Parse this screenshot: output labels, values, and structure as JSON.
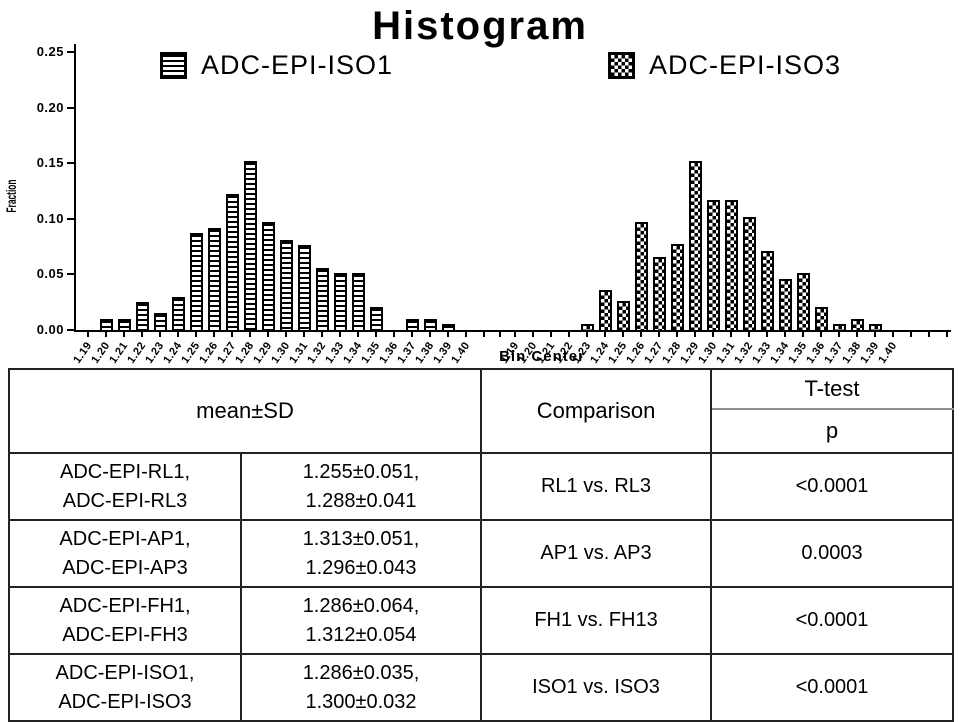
{
  "chart_data": {
    "type": "bar",
    "title": "Histogram",
    "xlabel": "Bin Center",
    "ylabel": "Fraction",
    "ylim": [
      0,
      0.25
    ],
    "yticks": [
      "0.00",
      "0.05",
      "0.10",
      "0.15",
      "0.20",
      "0.25"
    ],
    "grid": false,
    "legend_position": "top",
    "categories": [
      "1.19",
      "1.20",
      "1.21",
      "1.22",
      "1.23",
      "1.24",
      "1.25",
      "1.26",
      "1.27",
      "1.28",
      "1.29",
      "1.30",
      "1.31",
      "1.32",
      "1.33",
      "1.34",
      "1.35",
      "1.36",
      "1.37",
      "1.38",
      "1.39",
      "1.40"
    ],
    "series": [
      {
        "name": "ADC-EPI-ISO1",
        "pattern": "horizontal-lines",
        "values": [
          0,
          0.01,
          0.01,
          0.025,
          0.015,
          0.03,
          0.087,
          0.092,
          0.122,
          0.152,
          0.097,
          0.081,
          0.076,
          0.056,
          0.051,
          0.051,
          0.021,
          0,
          0.01,
          0.01,
          0.005,
          0
        ]
      },
      {
        "name": "ADC-EPI-ISO3",
        "pattern": "checkerboard",
        "values": [
          0,
          0,
          0,
          0,
          0.005,
          0.036,
          0.026,
          0.097,
          0.066,
          0.077,
          0.152,
          0.117,
          0.117,
          0.102,
          0.071,
          0.046,
          0.051,
          0.021,
          0.005,
          0.01,
          0.005,
          0
        ]
      }
    ],
    "colors": {
      "foreground": "#000000",
      "background": "#ffffff"
    }
  },
  "legend": [
    {
      "label": "ADC-EPI-ISO1",
      "pattern": "horizontal-lines"
    },
    {
      "label": "ADC-EPI-ISO3",
      "pattern": "checkerboard"
    }
  ],
  "table": {
    "headers": {
      "mean_sd": "mean±SD",
      "comparison": "Comparison",
      "ttest": "T-test",
      "p": "p"
    },
    "rows": [
      {
        "name_lines": [
          "ADC-EPI-RL1,",
          "ADC-EPI-RL3"
        ],
        "value_lines": [
          "1.255±0.051,",
          "1.288±0.041"
        ],
        "comparison": "RL1 vs. RL3",
        "p": "<0.0001"
      },
      {
        "name_lines": [
          "ADC-EPI-AP1,",
          "ADC-EPI-AP3"
        ],
        "value_lines": [
          "1.313±0.051,",
          "1.296±0.043"
        ],
        "comparison": "AP1 vs. AP3",
        "p": "0.0003"
      },
      {
        "name_lines": [
          "ADC-EPI-FH1,",
          "ADC-EPI-FH3"
        ],
        "value_lines": [
          "1.286±0.064,",
          "1.312±0.054"
        ],
        "comparison": "FH1 vs. FH13",
        "p": "<0.0001"
      },
      {
        "name_lines": [
          "ADC-EPI-ISO1,",
          "ADC-EPI-ISO3"
        ],
        "value_lines": [
          "1.286±0.035,",
          "1.300±0.032"
        ],
        "comparison": "ISO1 vs. ISO3",
        "p": "<0.0001"
      }
    ]
  }
}
